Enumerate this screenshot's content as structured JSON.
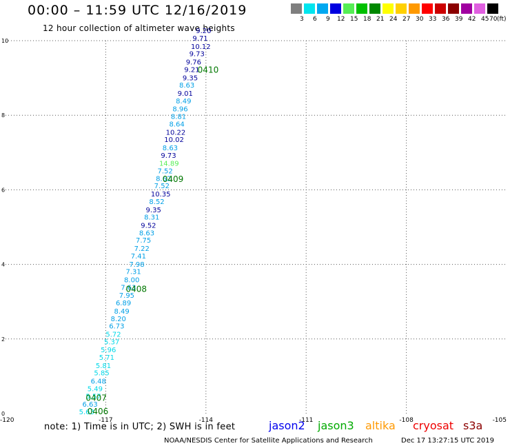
{
  "header": {
    "title": "00:00 – 11:59 UTC 12/16/2019",
    "subtitle": "12 hour collection of altimeter wave heights"
  },
  "color_scale": {
    "unit": "(ft)",
    "steps": [
      {
        "label": "3",
        "color": "#7f7f7f"
      },
      {
        "label": "6",
        "color": "#00e5ee"
      },
      {
        "label": "9",
        "color": "#00a8f0"
      },
      {
        "label": "12",
        "color": "#0000e0"
      },
      {
        "label": "15",
        "color": "#55ee55"
      },
      {
        "label": "18",
        "color": "#00c000"
      },
      {
        "label": "21",
        "color": "#008800"
      },
      {
        "label": "24",
        "color": "#ffff00"
      },
      {
        "label": "27",
        "color": "#ffd000"
      },
      {
        "label": "30",
        "color": "#ff9900"
      },
      {
        "label": "33",
        "color": "#ff0000"
      },
      {
        "label": "36",
        "color": "#cc0000"
      },
      {
        "label": "39",
        "color": "#8b0000"
      },
      {
        "label": "42",
        "color": "#a000a0"
      },
      {
        "label": "45",
        "color": "#e060e0"
      },
      {
        "label": "70",
        "color": "#000000"
      }
    ]
  },
  "chart_data": {
    "type": "scatter",
    "title": "00:00 – 11:59 UTC 12/16/2019",
    "subtitle": "12 hour collection of altimeter wave heights",
    "xlim": [
      -120,
      -105
    ],
    "ylim": [
      0,
      10
    ],
    "x_ticks": [
      "-120",
      "-117",
      "-114",
      "-111",
      "-108",
      "-105"
    ],
    "y_ticks": [
      "0",
      "2",
      "4",
      "6",
      "8",
      "10"
    ],
    "grid": true,
    "point_colors": {
      "c": "#00d8e8",
      "b": "#009fe6",
      "n": "#00009a",
      "g": "#55ee55"
    },
    "points": [
      {
        "x": -117.8,
        "y": 0.0,
        "label": "5.63",
        "c": "c"
      },
      {
        "x": -117.7,
        "y": 0.2,
        "label": "6.63",
        "c": "b"
      },
      {
        "x": -117.6,
        "y": 0.42,
        "label": "5.57",
        "c": "c"
      },
      {
        "x": -117.55,
        "y": 0.62,
        "label": "5.49",
        "c": "c"
      },
      {
        "x": -117.45,
        "y": 0.82,
        "label": "6.48",
        "c": "b"
      },
      {
        "x": -117.35,
        "y": 1.04,
        "label": "5.85",
        "c": "c"
      },
      {
        "x": -117.3,
        "y": 1.24,
        "label": "5.81",
        "c": "c"
      },
      {
        "x": -117.2,
        "y": 1.46,
        "label": "5.71",
        "c": "c"
      },
      {
        "x": -117.15,
        "y": 1.66,
        "label": "5.96",
        "c": "c"
      },
      {
        "x": -117.05,
        "y": 1.88,
        "label": "5.37",
        "c": "c"
      },
      {
        "x": -117.0,
        "y": 2.08,
        "label": "5.72",
        "c": "c"
      },
      {
        "x": -116.9,
        "y": 2.3,
        "label": "6.73",
        "c": "b"
      },
      {
        "x": -116.85,
        "y": 2.5,
        "label": "8.20",
        "c": "b"
      },
      {
        "x": -116.75,
        "y": 2.7,
        "label": "8.49",
        "c": "b"
      },
      {
        "x": -116.7,
        "y": 2.92,
        "label": "6.89",
        "c": "b"
      },
      {
        "x": -116.6,
        "y": 3.12,
        "label": "7.95",
        "c": "b"
      },
      {
        "x": -116.55,
        "y": 3.34,
        "label": "7.63",
        "c": "b"
      },
      {
        "x": -116.45,
        "y": 3.54,
        "label": "8.00",
        "c": "b"
      },
      {
        "x": -116.4,
        "y": 3.76,
        "label": "7.31",
        "c": "b"
      },
      {
        "x": -116.3,
        "y": 3.96,
        "label": "7.98",
        "c": "b"
      },
      {
        "x": -116.25,
        "y": 4.18,
        "label": "7.41",
        "c": "b"
      },
      {
        "x": -116.15,
        "y": 4.38,
        "label": "7.22",
        "c": "b"
      },
      {
        "x": -116.1,
        "y": 4.6,
        "label": "7.75",
        "c": "b"
      },
      {
        "x": -116.0,
        "y": 4.8,
        "label": "8.63",
        "c": "b"
      },
      {
        "x": -115.95,
        "y": 5.0,
        "label": "9.52",
        "c": "n"
      },
      {
        "x": -115.85,
        "y": 5.22,
        "label": "8.31",
        "c": "b"
      },
      {
        "x": -115.8,
        "y": 5.42,
        "label": "9.35",
        "c": "n"
      },
      {
        "x": -115.7,
        "y": 5.64,
        "label": "8.52",
        "c": "b"
      },
      {
        "x": -115.65,
        "y": 5.84,
        "label": "10.35",
        "c": "n"
      },
      {
        "x": -115.55,
        "y": 6.06,
        "label": "7.52",
        "c": "b"
      },
      {
        "x": -115.5,
        "y": 6.26,
        "label": "8.62",
        "c": "b"
      },
      {
        "x": -115.45,
        "y": 6.46,
        "label": "7.52",
        "c": "b"
      },
      {
        "x": -115.4,
        "y": 6.66,
        "label": "14.89",
        "c": "g"
      },
      {
        "x": -115.35,
        "y": 6.88,
        "label": "9.73",
        "c": "n"
      },
      {
        "x": -115.3,
        "y": 7.08,
        "label": "8.63",
        "c": "b"
      },
      {
        "x": -115.25,
        "y": 7.3,
        "label": "10.02",
        "c": "n"
      },
      {
        "x": -115.2,
        "y": 7.5,
        "label": "10.22",
        "c": "n"
      },
      {
        "x": -115.1,
        "y": 7.72,
        "label": "8.64",
        "c": "b"
      },
      {
        "x": -115.05,
        "y": 7.92,
        "label": "8.81",
        "c": "b"
      },
      {
        "x": -115.0,
        "y": 8.12,
        "label": "8.96",
        "c": "b"
      },
      {
        "x": -114.9,
        "y": 8.34,
        "label": "8.49",
        "c": "b"
      },
      {
        "x": -114.85,
        "y": 8.54,
        "label": "9.01",
        "c": "n"
      },
      {
        "x": -114.8,
        "y": 8.76,
        "label": "8.63",
        "c": "b"
      },
      {
        "x": -114.7,
        "y": 8.96,
        "label": "9.35",
        "c": "n"
      },
      {
        "x": -114.65,
        "y": 9.18,
        "label": "9.21",
        "c": "n"
      },
      {
        "x": -114.6,
        "y": 9.38,
        "label": "9.76",
        "c": "n"
      },
      {
        "x": -114.5,
        "y": 9.6,
        "label": "9.73",
        "c": "n"
      },
      {
        "x": -114.45,
        "y": 9.8,
        "label": "10.12",
        "c": "n"
      },
      {
        "x": -114.4,
        "y": 10.02,
        "label": "9.71",
        "c": "n"
      },
      {
        "x": -114.3,
        "y": 10.22,
        "label": "9.20",
        "c": "n"
      }
    ],
    "time_labels": [
      {
        "x": -117.55,
        "y": 0.02,
        "label": "0406"
      },
      {
        "x": -117.6,
        "y": 0.38,
        "label": "0407"
      },
      {
        "x": -116.4,
        "y": 3.3,
        "label": "0408"
      },
      {
        "x": -115.3,
        "y": 6.25,
        "label": "0409"
      },
      {
        "x": -114.25,
        "y": 9.18,
        "label": "0410"
      }
    ],
    "time_label_color": "#007700"
  },
  "footer": {
    "note": "note: 1) Time is in UTC; 2) SWH is in feet",
    "satellites": [
      {
        "name": "jason2",
        "color": "#0000ee"
      },
      {
        "name": "jason3",
        "color": "#00aa00"
      },
      {
        "name": "altika",
        "color": "#ff9900"
      },
      {
        "name": "cryosat",
        "color": "#ee0000"
      },
      {
        "name": "s3a",
        "color": "#8b0000"
      }
    ],
    "credit": "NOAA/NESDIS Center for Satellite Applications and Research",
    "timestamp": "Dec 17 13:27:15 UTC 2019"
  }
}
